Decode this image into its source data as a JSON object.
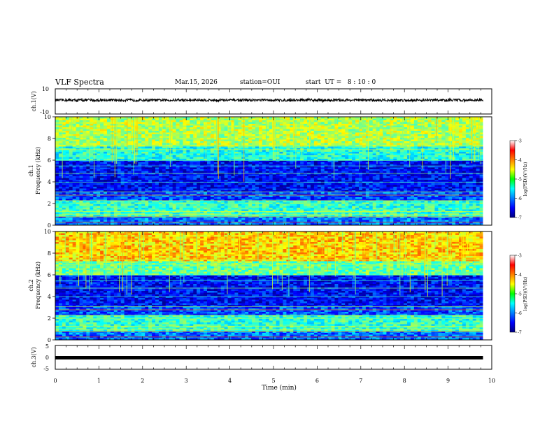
{
  "header": {
    "title": "VLF Spectra",
    "date": "Mar.15, 2026",
    "station": "station=OUI",
    "start_ut": "start  UT =   8 : 10 : 0"
  },
  "chart_data": [
    {
      "type": "line",
      "name": "ch1-waveform",
      "ylabel": "ch.1(V)",
      "ylim": [
        -10,
        10
      ],
      "yticks": [
        "10",
        "-10"
      ],
      "signal": "broadband noise centered near +1 V, amplitude about 1 V"
    },
    {
      "type": "heatmap",
      "name": "ch1-spectrogram",
      "ylabel_line1": "ch.1",
      "ylabel_line2": "Frequency (kHz)",
      "ylim": [
        0,
        10
      ],
      "yticks": [
        "0",
        "2",
        "4",
        "6",
        "8",
        "10"
      ],
      "colorbar": {
        "label": "log(PSD)(V²/Hz)",
        "range": [
          -7,
          -3
        ],
        "ticks": [
          "-3",
          "-4",
          "-5",
          "-6",
          "-7"
        ]
      }
    },
    {
      "type": "heatmap",
      "name": "ch2-spectrogram",
      "ylabel_line1": "ch.2",
      "ylabel_line2": "Frequency (kHz)",
      "ylim": [
        0,
        10
      ],
      "yticks": [
        "0",
        "2",
        "4",
        "6",
        "8",
        "10"
      ],
      "colorbar": {
        "label": "log(PSD)(V²/Hz)",
        "range": [
          -7,
          -3
        ],
        "ticks": [
          "-3",
          "-4",
          "-5",
          "-6",
          "-7"
        ]
      }
    },
    {
      "type": "line",
      "name": "ch3-waveform",
      "ylabel": "ch.3(V)",
      "ylim": [
        -5,
        5
      ],
      "yticks": [
        "5",
        "0",
        "-5"
      ],
      "signal": "constant near -1 V"
    }
  ],
  "x_axis": {
    "label": "Time (min)",
    "range": [
      0,
      10
    ],
    "ticks": [
      "0",
      "1",
      "2",
      "3",
      "4",
      "5",
      "6",
      "7",
      "8",
      "9",
      "10"
    ],
    "data_end": 9.8
  }
}
